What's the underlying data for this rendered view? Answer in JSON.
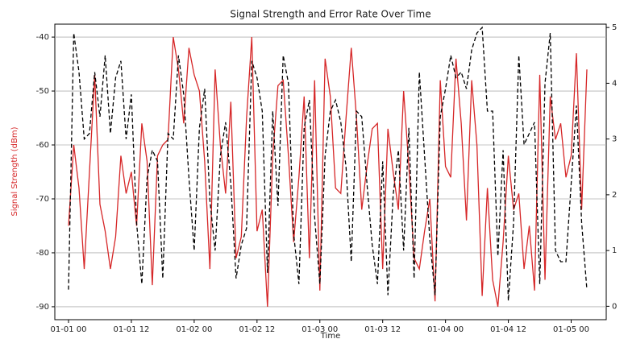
{
  "chart_data": {
    "type": "line",
    "title": "Signal Strength and Error Rate Over Time",
    "xlabel": "Time",
    "ylabel": "Signal Strength (dBm)",
    "x": [
      "01-01 00",
      "01-01 01",
      "01-01 02",
      "01-01 03",
      "01-01 04",
      "01-01 05",
      "01-01 06",
      "01-01 07",
      "01-01 08",
      "01-01 09",
      "01-01 10",
      "01-01 11",
      "01-01 12",
      "01-01 13",
      "01-01 14",
      "01-01 15",
      "01-01 16",
      "01-01 17",
      "01-01 18",
      "01-01 19",
      "01-01 20",
      "01-01 21",
      "01-01 22",
      "01-01 23",
      "01-02 00",
      "01-02 01",
      "01-02 02",
      "01-02 03",
      "01-02 04",
      "01-02 05",
      "01-02 06",
      "01-02 07",
      "01-02 08",
      "01-02 09",
      "01-02 10",
      "01-02 11",
      "01-02 12",
      "01-02 13",
      "01-02 14",
      "01-02 15",
      "01-02 16",
      "01-02 17",
      "01-02 18",
      "01-02 19",
      "01-02 20",
      "01-02 21",
      "01-02 22",
      "01-02 23",
      "01-03 00",
      "01-03 01",
      "01-03 02",
      "01-03 03",
      "01-03 04",
      "01-03 05",
      "01-03 06",
      "01-03 07",
      "01-03 08",
      "01-03 09",
      "01-03 10",
      "01-03 11",
      "01-03 12",
      "01-03 13",
      "01-03 14",
      "01-03 15",
      "01-03 16",
      "01-03 17",
      "01-03 18",
      "01-03 19",
      "01-03 20",
      "01-03 21",
      "01-03 22",
      "01-03 23",
      "01-04 00",
      "01-04 01",
      "01-04 02",
      "01-04 03",
      "01-04 04",
      "01-04 05",
      "01-04 06",
      "01-04 07",
      "01-04 08",
      "01-04 09",
      "01-04 10",
      "01-04 11",
      "01-04 12",
      "01-04 13",
      "01-04 14",
      "01-04 15",
      "01-04 16",
      "01-04 17",
      "01-04 18",
      "01-04 19",
      "01-04 20",
      "01-04 21",
      "01-04 22",
      "01-04 23",
      "01-05 00",
      "01-05 01",
      "01-05 02",
      "01-05 03"
    ],
    "xticks": [
      "01-01 00",
      "01-01 12",
      "01-02 00",
      "01-02 12",
      "01-03 00",
      "01-03 12",
      "01-04 00",
      "01-04 12",
      "01-05 00"
    ],
    "series": [
      {
        "color": "#d62728",
        "dash": false,
        "values": [
          -75,
          -60,
          -68,
          -83,
          -65,
          -47,
          -71,
          -76,
          -83,
          -77,
          -62,
          -69,
          -65,
          -75,
          -56,
          -63,
          -86,
          -62,
          -60,
          -59,
          -40,
          -46,
          -56,
          -42,
          -47,
          -50,
          -63,
          -83,
          -46,
          -60,
          -69,
          -52,
          -81,
          -77,
          -55,
          -40,
          -76,
          -72,
          -90,
          -62,
          -49,
          -48,
          -62,
          -78,
          -66,
          -51,
          -81,
          -48,
          -87,
          -44,
          -51,
          -68,
          -69,
          -55,
          -42,
          -55,
          -72,
          -64,
          -57,
          -56,
          -83,
          -57,
          -65,
          -72,
          -50,
          -64,
          -81,
          -83,
          -76,
          -70,
          -89,
          -48,
          -64,
          -66,
          -44,
          -56,
          -74,
          -48,
          -60,
          -88,
          -68,
          -85,
          -90,
          -78,
          -62,
          -72,
          -69,
          -83,
          -75,
          -87,
          -47,
          -85,
          -51,
          -59,
          -56,
          -66,
          -62,
          -43,
          -72,
          -46
        ]
      },
      {
        "color": "#000000",
        "dash": true,
        "axis": "y2",
        "values": [
          0.3,
          4.9,
          4.2,
          3.0,
          3.1,
          4.2,
          3.4,
          4.5,
          3.1,
          4.1,
          4.4,
          3.0,
          3.8,
          1.5,
          0.4,
          2.3,
          2.8,
          2.6,
          0.5,
          3.1,
          3.0,
          4.5,
          3.8,
          2.3,
          1.0,
          3.2,
          3.9,
          1.9,
          1.0,
          2.7,
          3.3,
          2.2,
          0.5,
          1.1,
          1.4,
          4.4,
          4.1,
          3.5,
          0.6,
          3.5,
          1.8,
          4.5,
          4.0,
          1.3,
          0.4,
          3.2,
          3.7,
          1.6,
          0.4,
          2.7,
          3.5,
          3.7,
          3.3,
          2.5,
          0.8,
          3.5,
          3.4,
          2.2,
          1.1,
          0.4,
          2.6,
          0.2,
          2.0,
          2.8,
          1.0,
          3.2,
          0.5,
          4.2,
          2.7,
          1.2,
          0.2,
          3.4,
          3.9,
          4.5,
          4.1,
          4.2,
          3.9,
          4.6,
          4.9,
          5.0,
          3.5,
          3.5,
          0.9,
          2.8,
          0.1,
          1.5,
          4.5,
          2.9,
          3.1,
          3.3,
          0.4,
          4.0,
          4.9,
          1.0,
          0.8,
          0.8,
          2.2,
          3.6,
          1.5,
          0.3
        ]
      }
    ],
    "ylim": [
      -92.4,
      -37.6
    ],
    "yticks": [
      -90,
      -80,
      -70,
      -60,
      -50,
      -40
    ],
    "y2lim": [
      -0.24,
      5.06
    ],
    "y2ticks": [
      0,
      1,
      2,
      3,
      4,
      5
    ],
    "grid": true,
    "ylabel_color": "#d62728"
  }
}
